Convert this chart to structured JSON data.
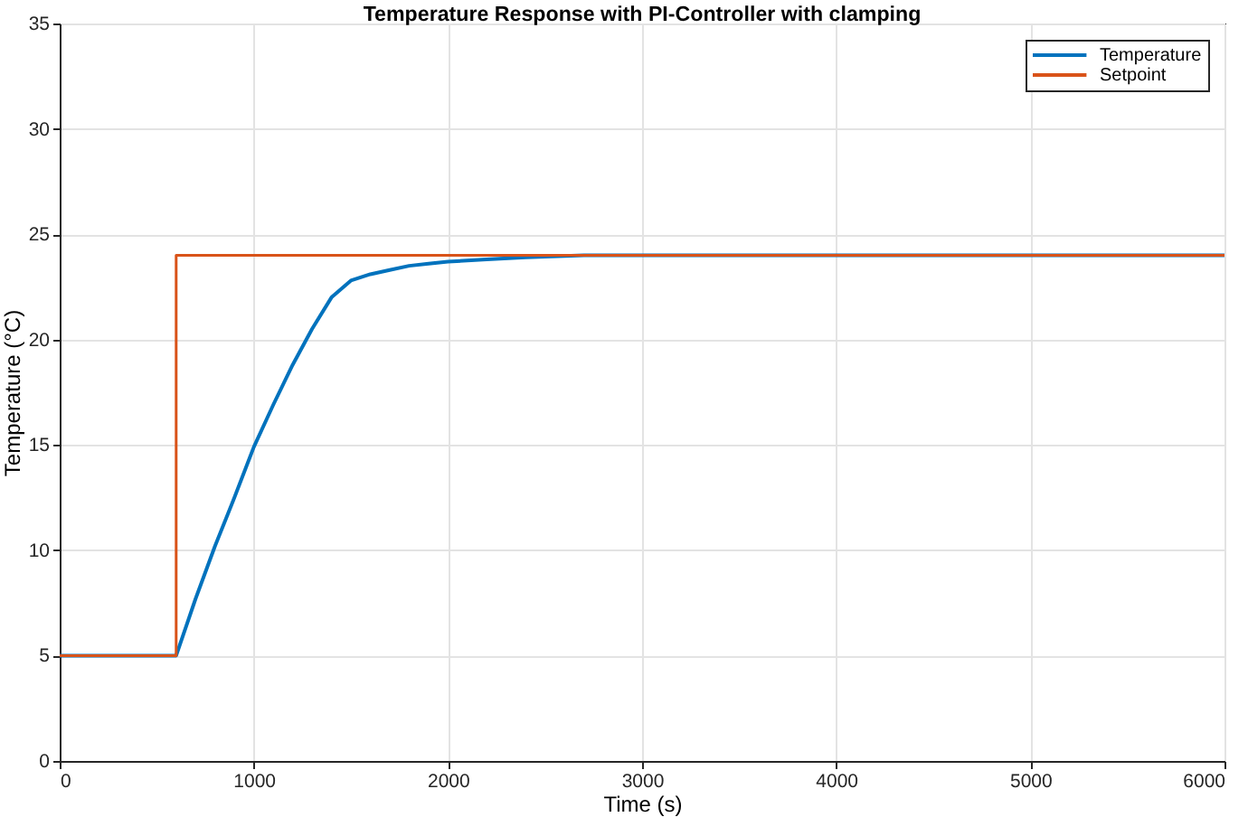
{
  "chart_data": {
    "type": "line",
    "title": "Temperature Response with PI-Controller with clamping",
    "xlabel": "Time (s)",
    "ylabel": "Temperature (°C)",
    "xlim": [
      0,
      6000
    ],
    "ylim": [
      0,
      35
    ],
    "xticks": [
      0,
      1000,
      2000,
      3000,
      4000,
      5000,
      6000
    ],
    "yticks": [
      0,
      5,
      10,
      15,
      20,
      25,
      30,
      35
    ],
    "grid": true,
    "legend": "top right",
    "series": [
      {
        "name": "Temperature",
        "color": "#0072bd",
        "x": [
          0,
          600,
          700,
          800,
          900,
          1000,
          1100,
          1200,
          1300,
          1400,
          1500,
          1600,
          1700,
          1800,
          1900,
          2000,
          2200,
          2400,
          2700,
          6000
        ],
        "values": [
          5,
          5,
          7.7,
          10.2,
          12.5,
          14.9,
          16.9,
          18.8,
          20.5,
          22,
          22.8,
          23.1,
          23.3,
          23.5,
          23.6,
          23.7,
          23.8,
          23.9,
          24,
          24
        ]
      },
      {
        "name": "Setpoint",
        "type": "step",
        "color": "#d95319",
        "x": [
          0,
          600,
          6000
        ],
        "values": [
          5,
          24,
          24
        ]
      }
    ]
  }
}
